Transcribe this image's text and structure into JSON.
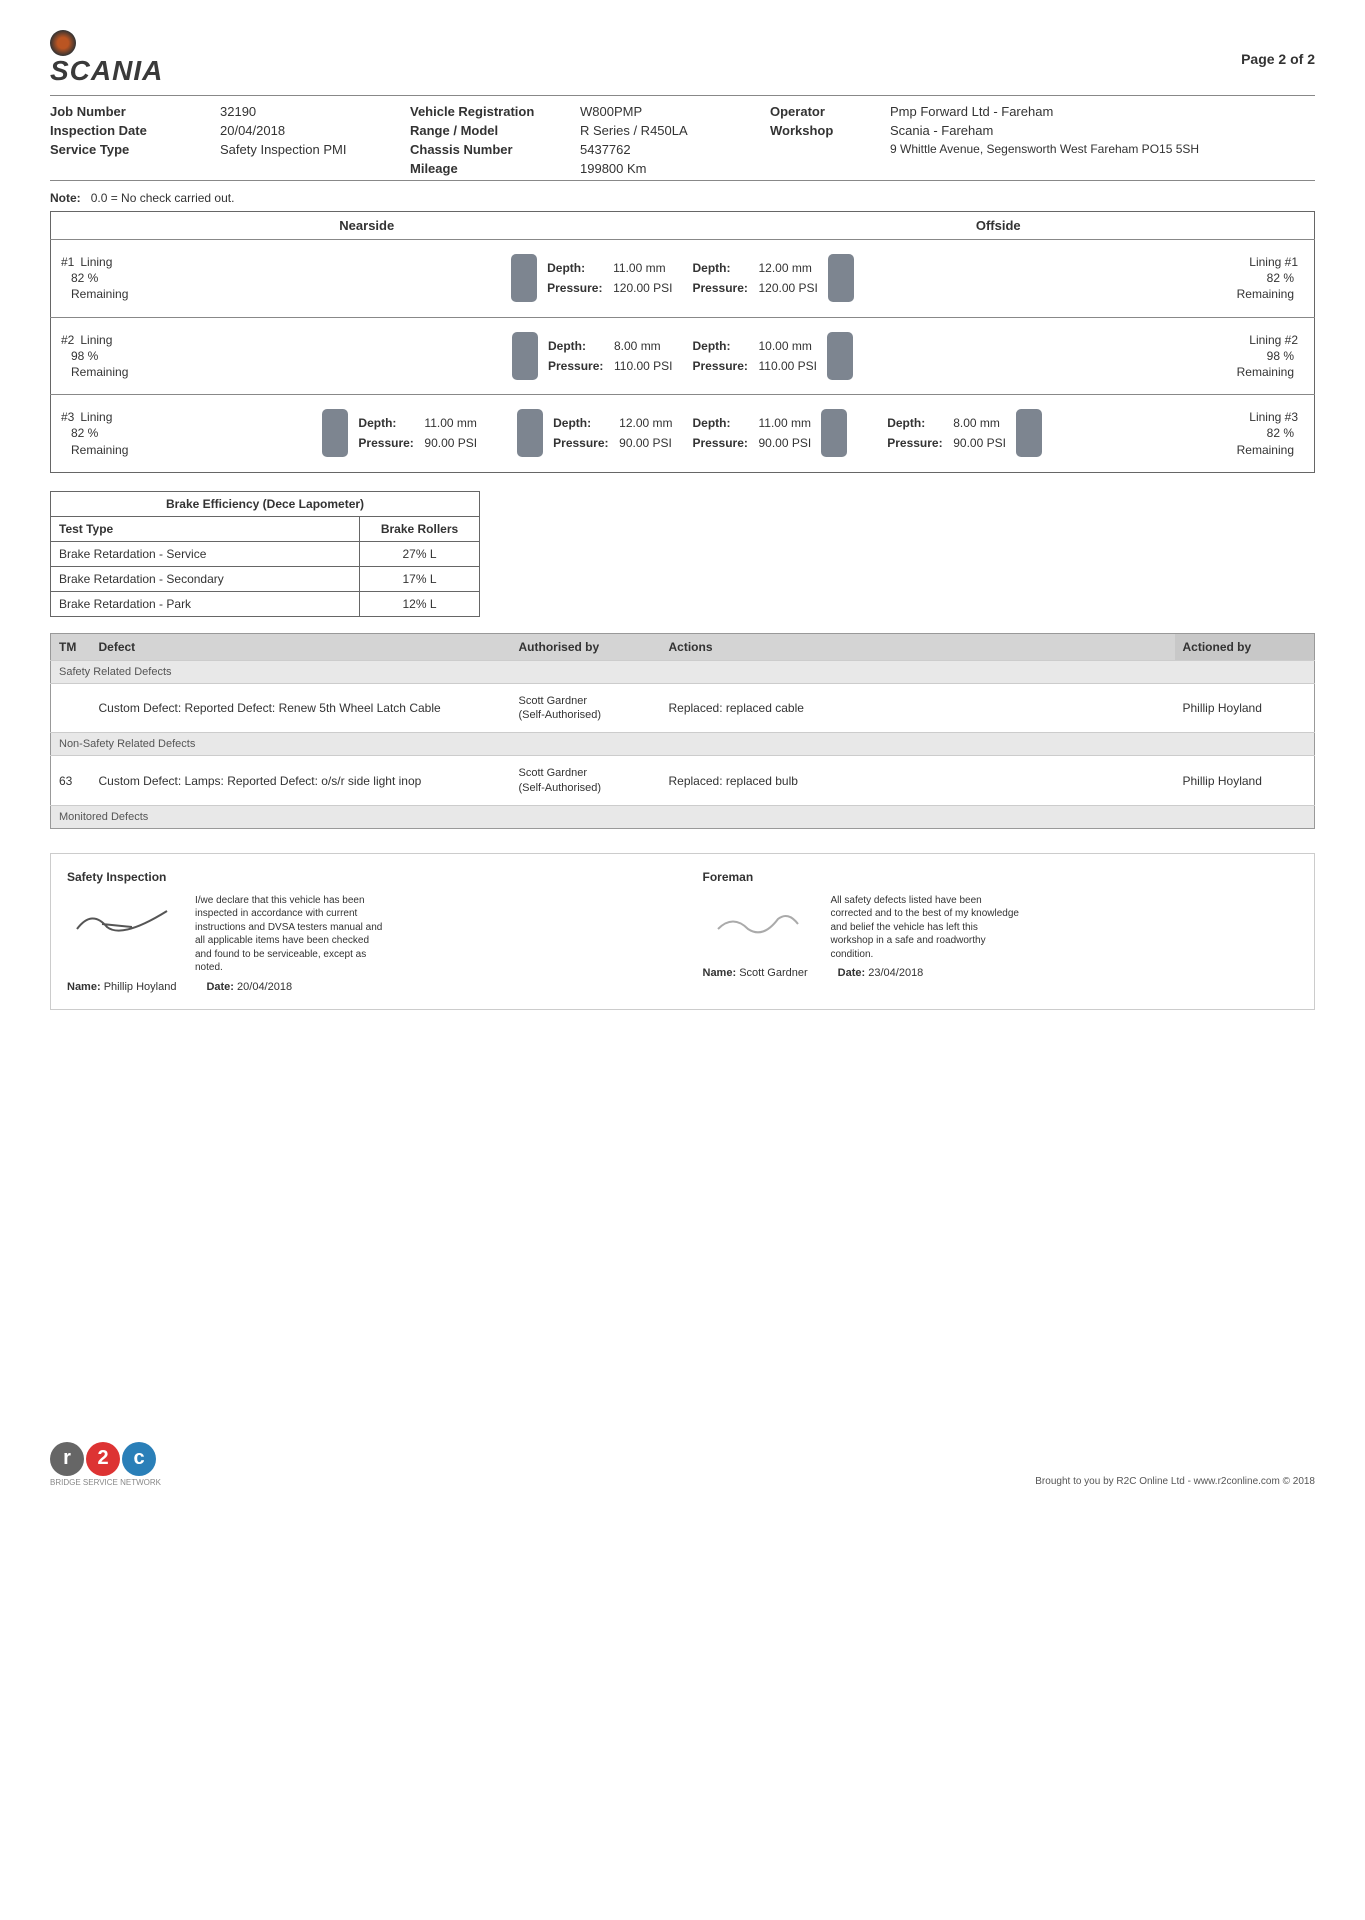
{
  "page_label": "Page 2 of 2",
  "brand": "SCANIA",
  "header": {
    "Job Number": "32190",
    "Inspection Date": "20/04/2018",
    "Service Type": "Safety Inspection PMI",
    "Vehicle Registration": "W800PMP",
    "Range / Model": "R Series / R450LA",
    "Chassis Number": "5437762",
    "Mileage": "199800 Km",
    "Operator": "Pmp Forward Ltd - Fareham",
    "Workshop": "Scania - Fareham",
    "Workshop_addr": "9 Whittle Avenue, Segensworth West Fareham PO15 5SH"
  },
  "note_label": "Note:",
  "note_text": "0.0 = No check carried out.",
  "side_labels": {
    "near": "Nearside",
    "off": "Offside"
  },
  "axles": [
    {
      "id": "#1",
      "near_lining": "82 %",
      "off_lining": "82 %",
      "near_tyres": [
        {
          "depth": "11.00 mm",
          "pressure": "120.00 PSI"
        }
      ],
      "off_tyres": [
        {
          "depth": "12.00 mm",
          "pressure": "120.00 PSI"
        }
      ],
      "twin": false
    },
    {
      "id": "#2",
      "near_lining": "98 %",
      "off_lining": "98 %",
      "near_tyres": [
        {
          "depth": "8.00 mm",
          "pressure": "110.00 PSI"
        }
      ],
      "off_tyres": [
        {
          "depth": "10.00 mm",
          "pressure": "110.00 PSI"
        }
      ],
      "twin": false
    },
    {
      "id": "#3",
      "near_lining": "82 %",
      "off_lining": "82 %",
      "near_tyres": [
        {
          "depth": "11.00 mm",
          "pressure": "90.00 PSI"
        },
        {
          "depth": "12.00 mm",
          "pressure": "90.00 PSI"
        }
      ],
      "off_tyres": [
        {
          "depth": "11.00 mm",
          "pressure": "90.00 PSI"
        },
        {
          "depth": "8.00 mm",
          "pressure": "90.00 PSI"
        }
      ],
      "twin": true
    }
  ],
  "brake": {
    "title": "Brake Efficiency (Dece Lapometer)",
    "testtype_label": "Test Type",
    "testtype_value": "Brake Rollers",
    "rows": [
      {
        "label": "Brake Retardation - Service",
        "value": "27% L"
      },
      {
        "label": "Brake Retardation - Secondary",
        "value": "17% L"
      },
      {
        "label": "Brake Retardation - Park",
        "value": "12% L"
      }
    ]
  },
  "defects": {
    "headers": {
      "tm": "TM",
      "defect": "Defect",
      "auth": "Authorised by",
      "actions": "Actions",
      "actby": "Actioned by"
    },
    "sections": [
      {
        "title": "Safety Related Defects",
        "rows": [
          {
            "tm": "",
            "defect": "Custom Defect: Reported Defect: Renew 5th Wheel Latch Cable",
            "auth": "Scott Gardner",
            "auth_sub": "(Self-Authorised)",
            "actions": "Replaced: replaced cable",
            "actby": "Phillip Hoyland"
          }
        ]
      },
      {
        "title": "Non-Safety Related Defects",
        "rows": [
          {
            "tm": "63",
            "defect": "Custom Defect: Lamps: Reported Defect: o/s/r side light inop",
            "auth": "Scott Gardner",
            "auth_sub": "(Self-Authorised)",
            "actions": "Replaced: replaced bulb",
            "actby": "Phillip Hoyland"
          }
        ]
      },
      {
        "title": "Monitored Defects",
        "rows": []
      }
    ]
  },
  "signoff": {
    "inspection": {
      "title": "Safety Inspection",
      "decl": "I/we declare that this vehicle has been inspected in accordance with current instructions and DVSA testers manual and all applicable items have been checked and found to be serviceable, except as noted.",
      "name_label": "Name:",
      "name": "Phillip Hoyland",
      "date_label": "Date:",
      "date": "20/04/2018"
    },
    "foreman": {
      "title": "Foreman",
      "decl": "All safety defects listed have been corrected and to the best of my knowledge and belief the vehicle has left this workshop in a safe and roadworthy condition.",
      "name_label": "Name:",
      "name": "Scott Gardner",
      "date_label": "Date:",
      "date": "23/04/2018"
    }
  },
  "footer": {
    "tag": "BRIDGE SERVICE NETWORK",
    "text": "Brought to you by R2C Online Ltd - www.r2conline.com © 2018"
  },
  "labels": {
    "lining": "Lining",
    "remaining": "Remaining",
    "depth": "Depth:",
    "pressure": "Pressure:"
  },
  "colors": {
    "tyre": "#7d8590",
    "border": "#666666",
    "section_bg": "#e8e8e8",
    "header_bg": "#d4d4d4"
  }
}
